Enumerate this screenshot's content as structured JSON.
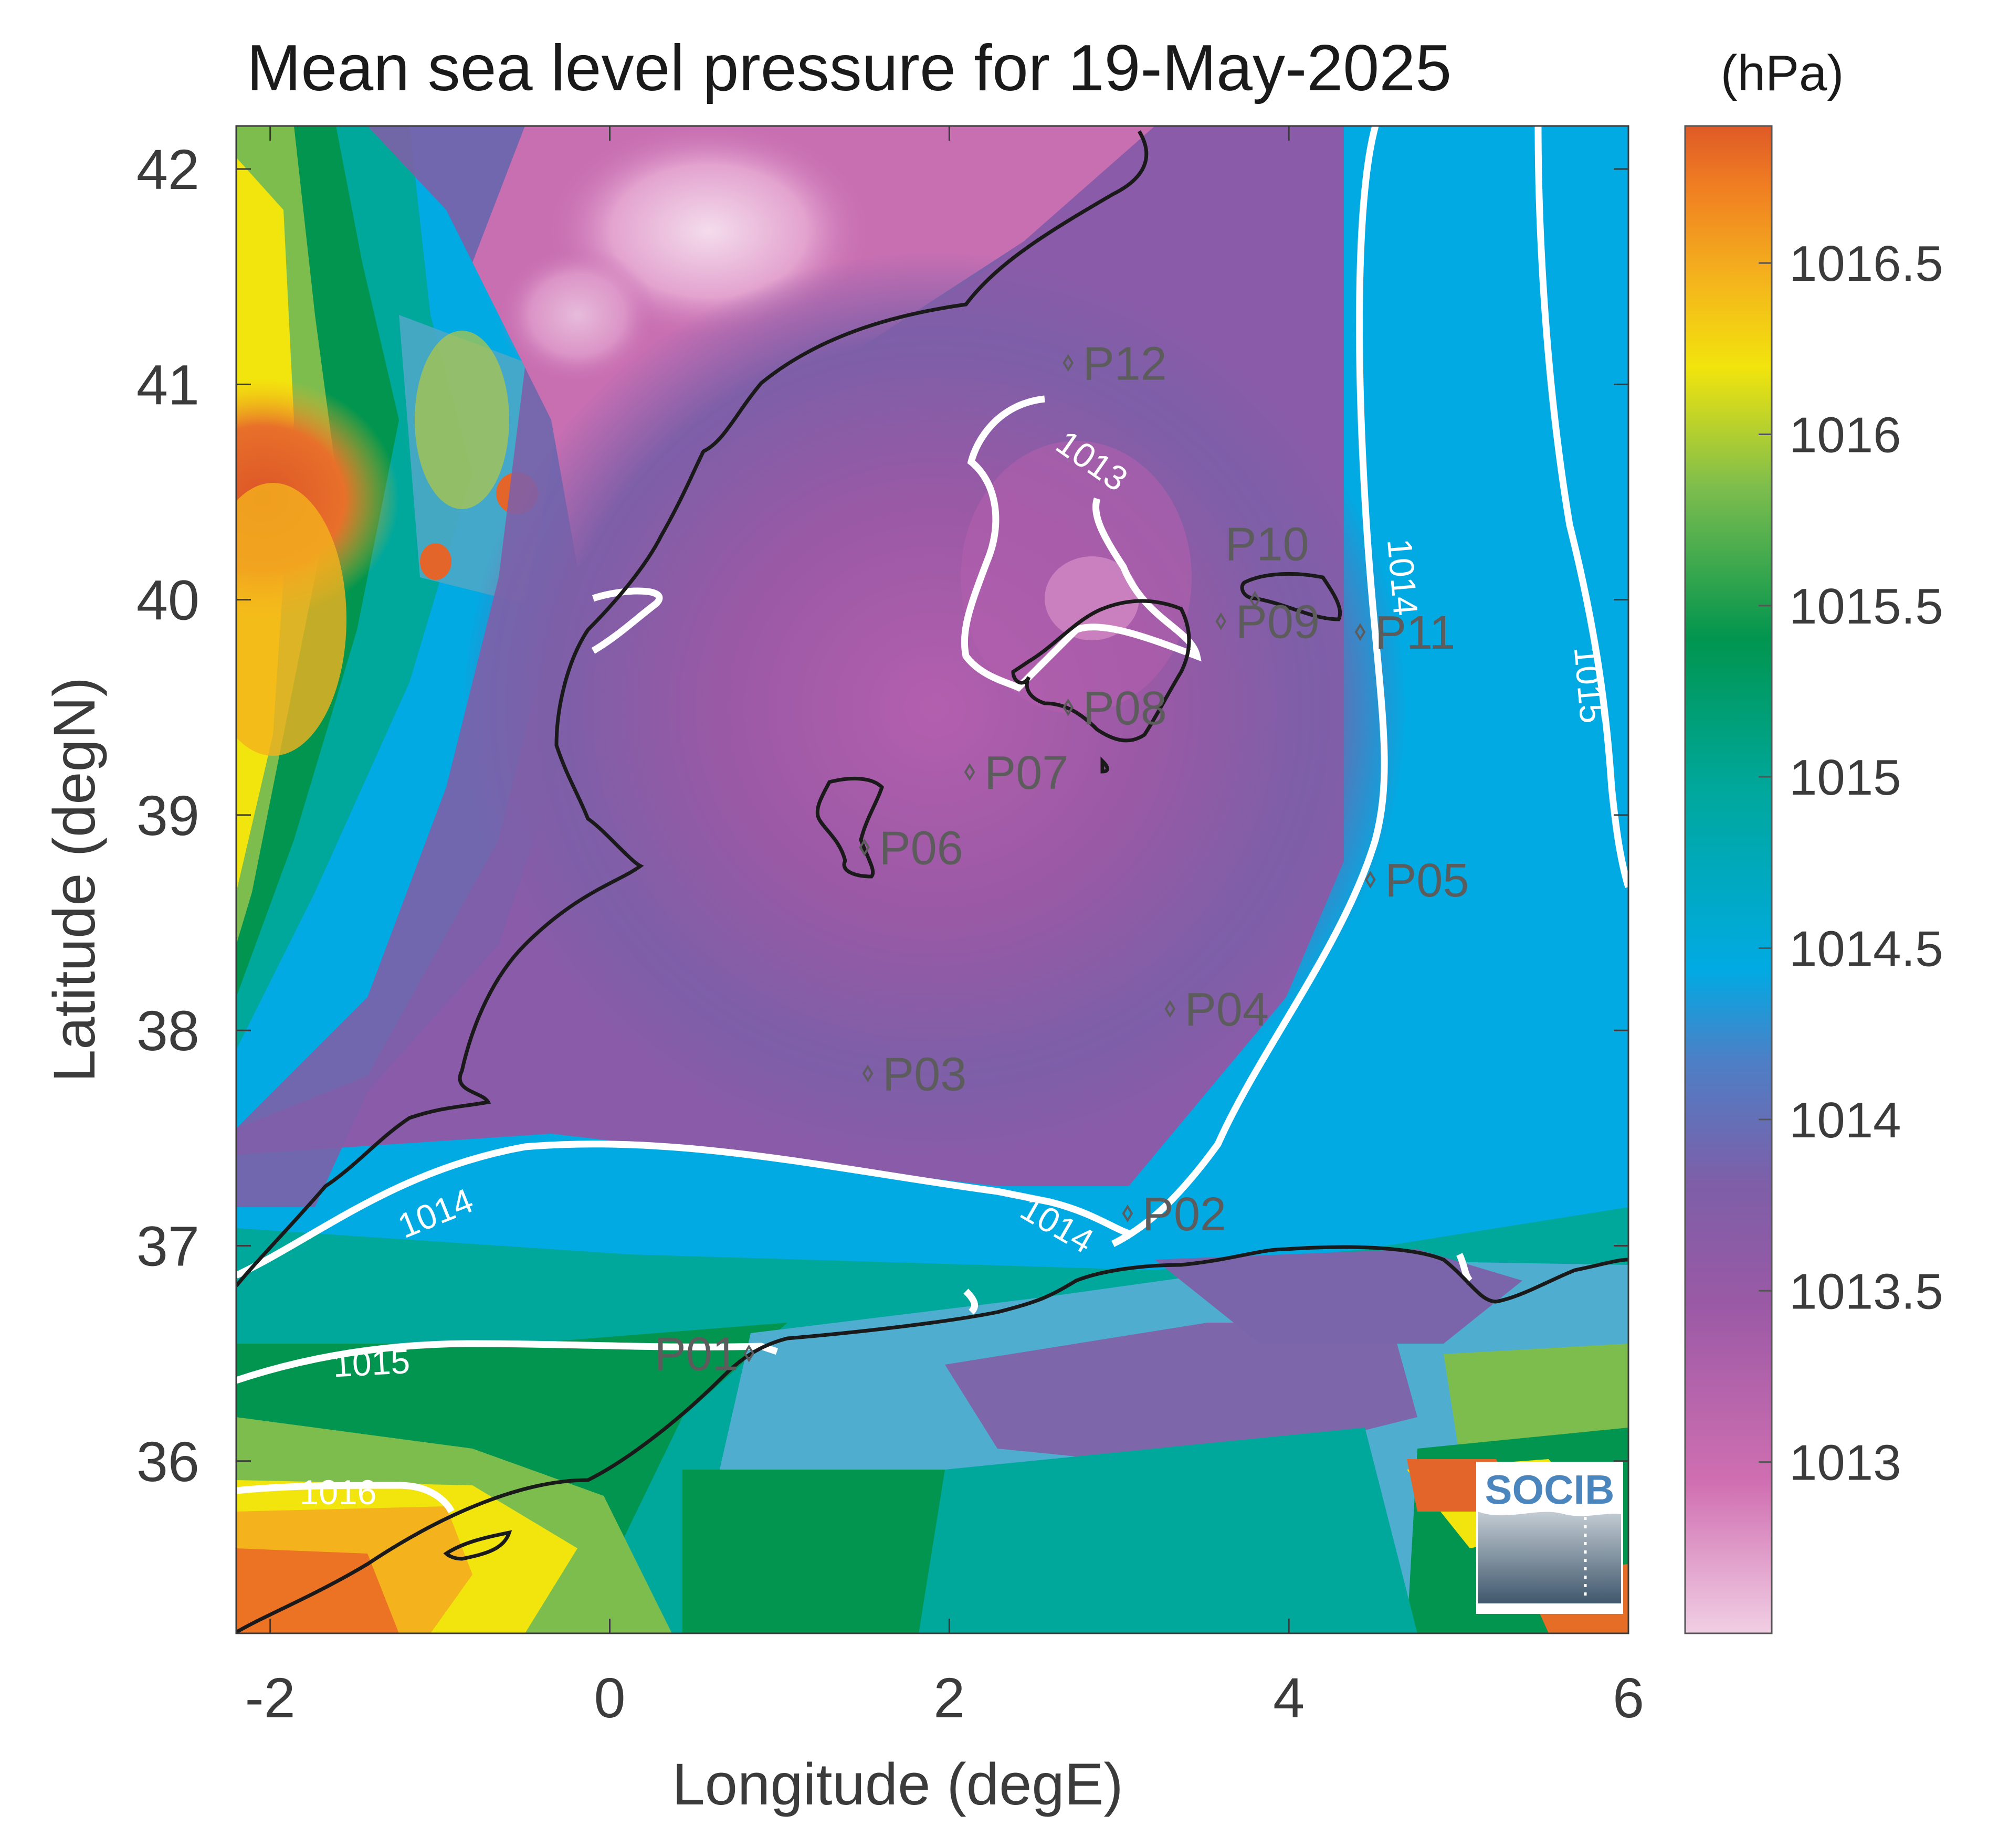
{
  "title": "Mean sea level pressure for 19-May-2025",
  "unit": "(hPa)",
  "xlabel": "Longitude (degE)",
  "ylabel": "Latitude (degN)",
  "xticks": [
    "-2",
    "0",
    "2",
    "4",
    "6"
  ],
  "yticks": [
    "42",
    "41",
    "40",
    "39",
    "38",
    "37",
    "36"
  ],
  "colorbar_ticks": [
    "1016.5",
    "1016",
    "1015.5",
    "1015",
    "1014.5",
    "1014",
    "1013.5",
    "1013"
  ],
  "colorbar_range": [
    1012.5,
    1016.9
  ],
  "colorbar_colors": [
    "#f1cfe4",
    "#d06fb1",
    "#9a59a5",
    "#7d5fa8",
    "#4d7fc6",
    "#01aae3",
    "#00a89c",
    "#01954f",
    "#7dbd4d",
    "#f2e40d",
    "#f4b21d",
    "#f07e22",
    "#df5a27"
  ],
  "map_extent": {
    "lon": [
      -2.2,
      6.0
    ],
    "lat": [
      35.2,
      42.2
    ]
  },
  "contour_labels": [
    {
      "text": "1013",
      "lon": 2.8,
      "lat": 40.6
    },
    {
      "text": "1014",
      "lon": 4.6,
      "lat": 40.1
    },
    {
      "text": "1014",
      "lon": -1.0,
      "lat": 37.1
    },
    {
      "text": "1014",
      "lon": 2.6,
      "lat": 37.05
    },
    {
      "text": "1015",
      "lon": 5.7,
      "lat": 39.6
    },
    {
      "text": "1015",
      "lon": -1.4,
      "lat": 36.4
    },
    {
      "text": "1016",
      "lon": -1.6,
      "lat": 35.8
    }
  ],
  "stations": [
    {
      "label": "P01",
      "lon": 0.82,
      "lat": 36.5
    },
    {
      "label": "P02",
      "lon": 3.05,
      "lat": 37.15
    },
    {
      "label": "P03",
      "lon": 1.52,
      "lat": 37.8
    },
    {
      "label": "P04",
      "lon": 3.3,
      "lat": 38.1
    },
    {
      "label": "P05",
      "lon": 4.48,
      "lat": 38.7
    },
    {
      "label": "P06",
      "lon": 1.5,
      "lat": 38.85
    },
    {
      "label": "P07",
      "lon": 2.12,
      "lat": 39.2
    },
    {
      "label": "P08",
      "lon": 2.7,
      "lat": 39.5
    },
    {
      "label": "P09",
      "lon": 3.6,
      "lat": 39.9
    },
    {
      "label": "P10",
      "lon": 3.8,
      "lat": 40.0
    },
    {
      "label": "P11",
      "lon": 4.42,
      "lat": 39.85
    },
    {
      "label": "P12",
      "lon": 2.7,
      "lat": 41.1
    }
  ],
  "logo": {
    "text": "SOCIB"
  }
}
